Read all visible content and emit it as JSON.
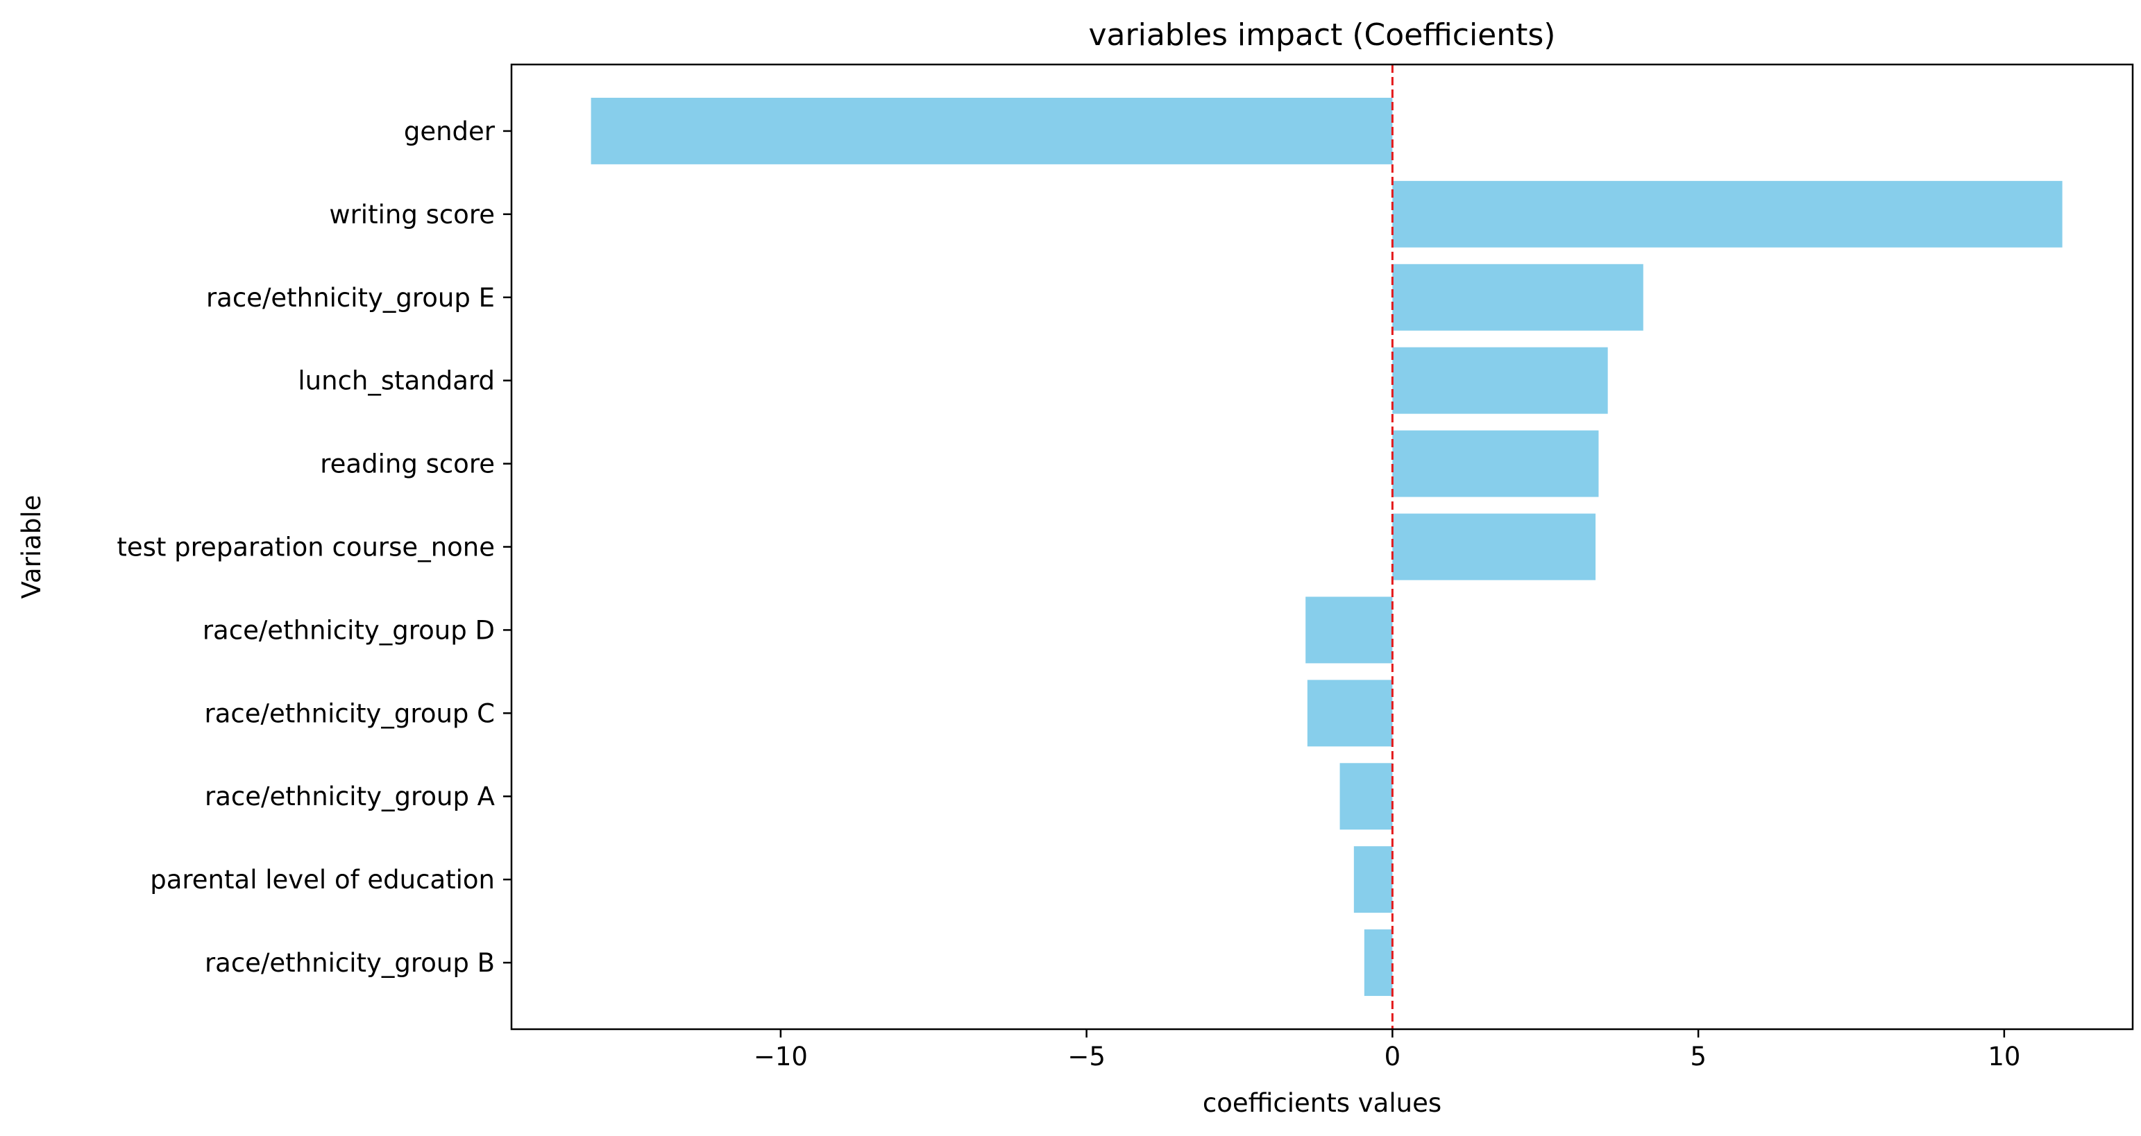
{
  "chart_data": {
    "type": "bar",
    "orientation": "horizontal",
    "title": "variables impact (Coefficients)",
    "xlabel": "coefficients values",
    "ylabel": "Variable",
    "categories": [
      "gender",
      "writing score",
      "race/ethnicity_group E",
      "lunch_standard",
      "reading score",
      "test preparation course_none",
      "race/ethnicity_group D",
      "race/ethnicity_group C",
      "race/ethnicity_group A",
      "parental level of education",
      "race/ethnicity_group B"
    ],
    "values": [
      -13.1,
      10.95,
      4.1,
      3.52,
      3.37,
      3.32,
      -1.42,
      -1.39,
      -0.86,
      -0.63,
      -0.46
    ],
    "xlim": [
      -14.4,
      12.1
    ],
    "xticks": [
      -10,
      -5,
      0,
      5,
      10
    ],
    "xtick_labels": [
      "−10",
      "−5",
      "0",
      "5",
      "10"
    ],
    "reference_line": {
      "x": 0,
      "style": "dashed",
      "color": "#e31a1c"
    },
    "bar_color": "#87ceeb",
    "grid": false
  }
}
